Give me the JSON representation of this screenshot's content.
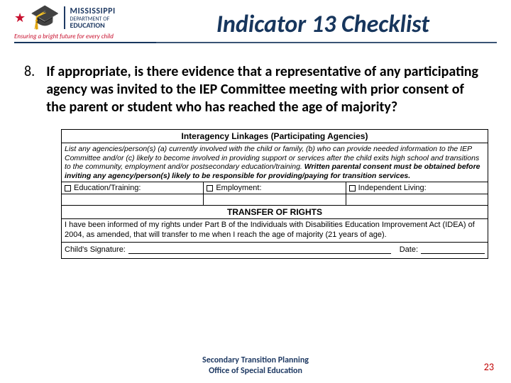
{
  "logo": {
    "state": "MISSISSIPPI",
    "dept": "DEPARTMENT OF",
    "edu": "EDUCATION",
    "tagline": "Ensuring a bright future for every child"
  },
  "title": "Indicator 13 Checklist",
  "item": {
    "number": "8.",
    "question": "If appropriate, is there evidence that a representative of any participating agency was invited to the IEP Committee meeting with prior consent of the parent or student who has reached the age of majority?"
  },
  "form": {
    "section1_title": "Interagency Linkages (Participating Agencies)",
    "instructions_plain": "List any agencies/person(s) (a) currently involved with the child or family, (b) who can provide needed information to the IEP Committee and/or (c) likely to become involved in providing support or services after the child exits high school and transitions to the community, employment and/or postsecondary education/training. ",
    "instructions_bold": "Written parental consent must be obtained before inviting any agency/person(s) likely to be responsible for providing/paying for transition services.",
    "col1": "Education/Training:",
    "col2": "Employment:",
    "col3": "Independent Living:",
    "section2_title": "TRANSFER OF RIGHTS",
    "transfer_text": "I have been informed of my rights under Part B of the Individuals with Disabilities Education Improvement Act (IDEA) of 2004, as amended, that will transfer to me when I reach the age of majority (21 years of age).",
    "sig_label": "Child's Signature:",
    "date_label": "Date:"
  },
  "footer": {
    "line1": "Secondary Transition Planning",
    "line2": "Office of Special Education"
  },
  "page": "23"
}
